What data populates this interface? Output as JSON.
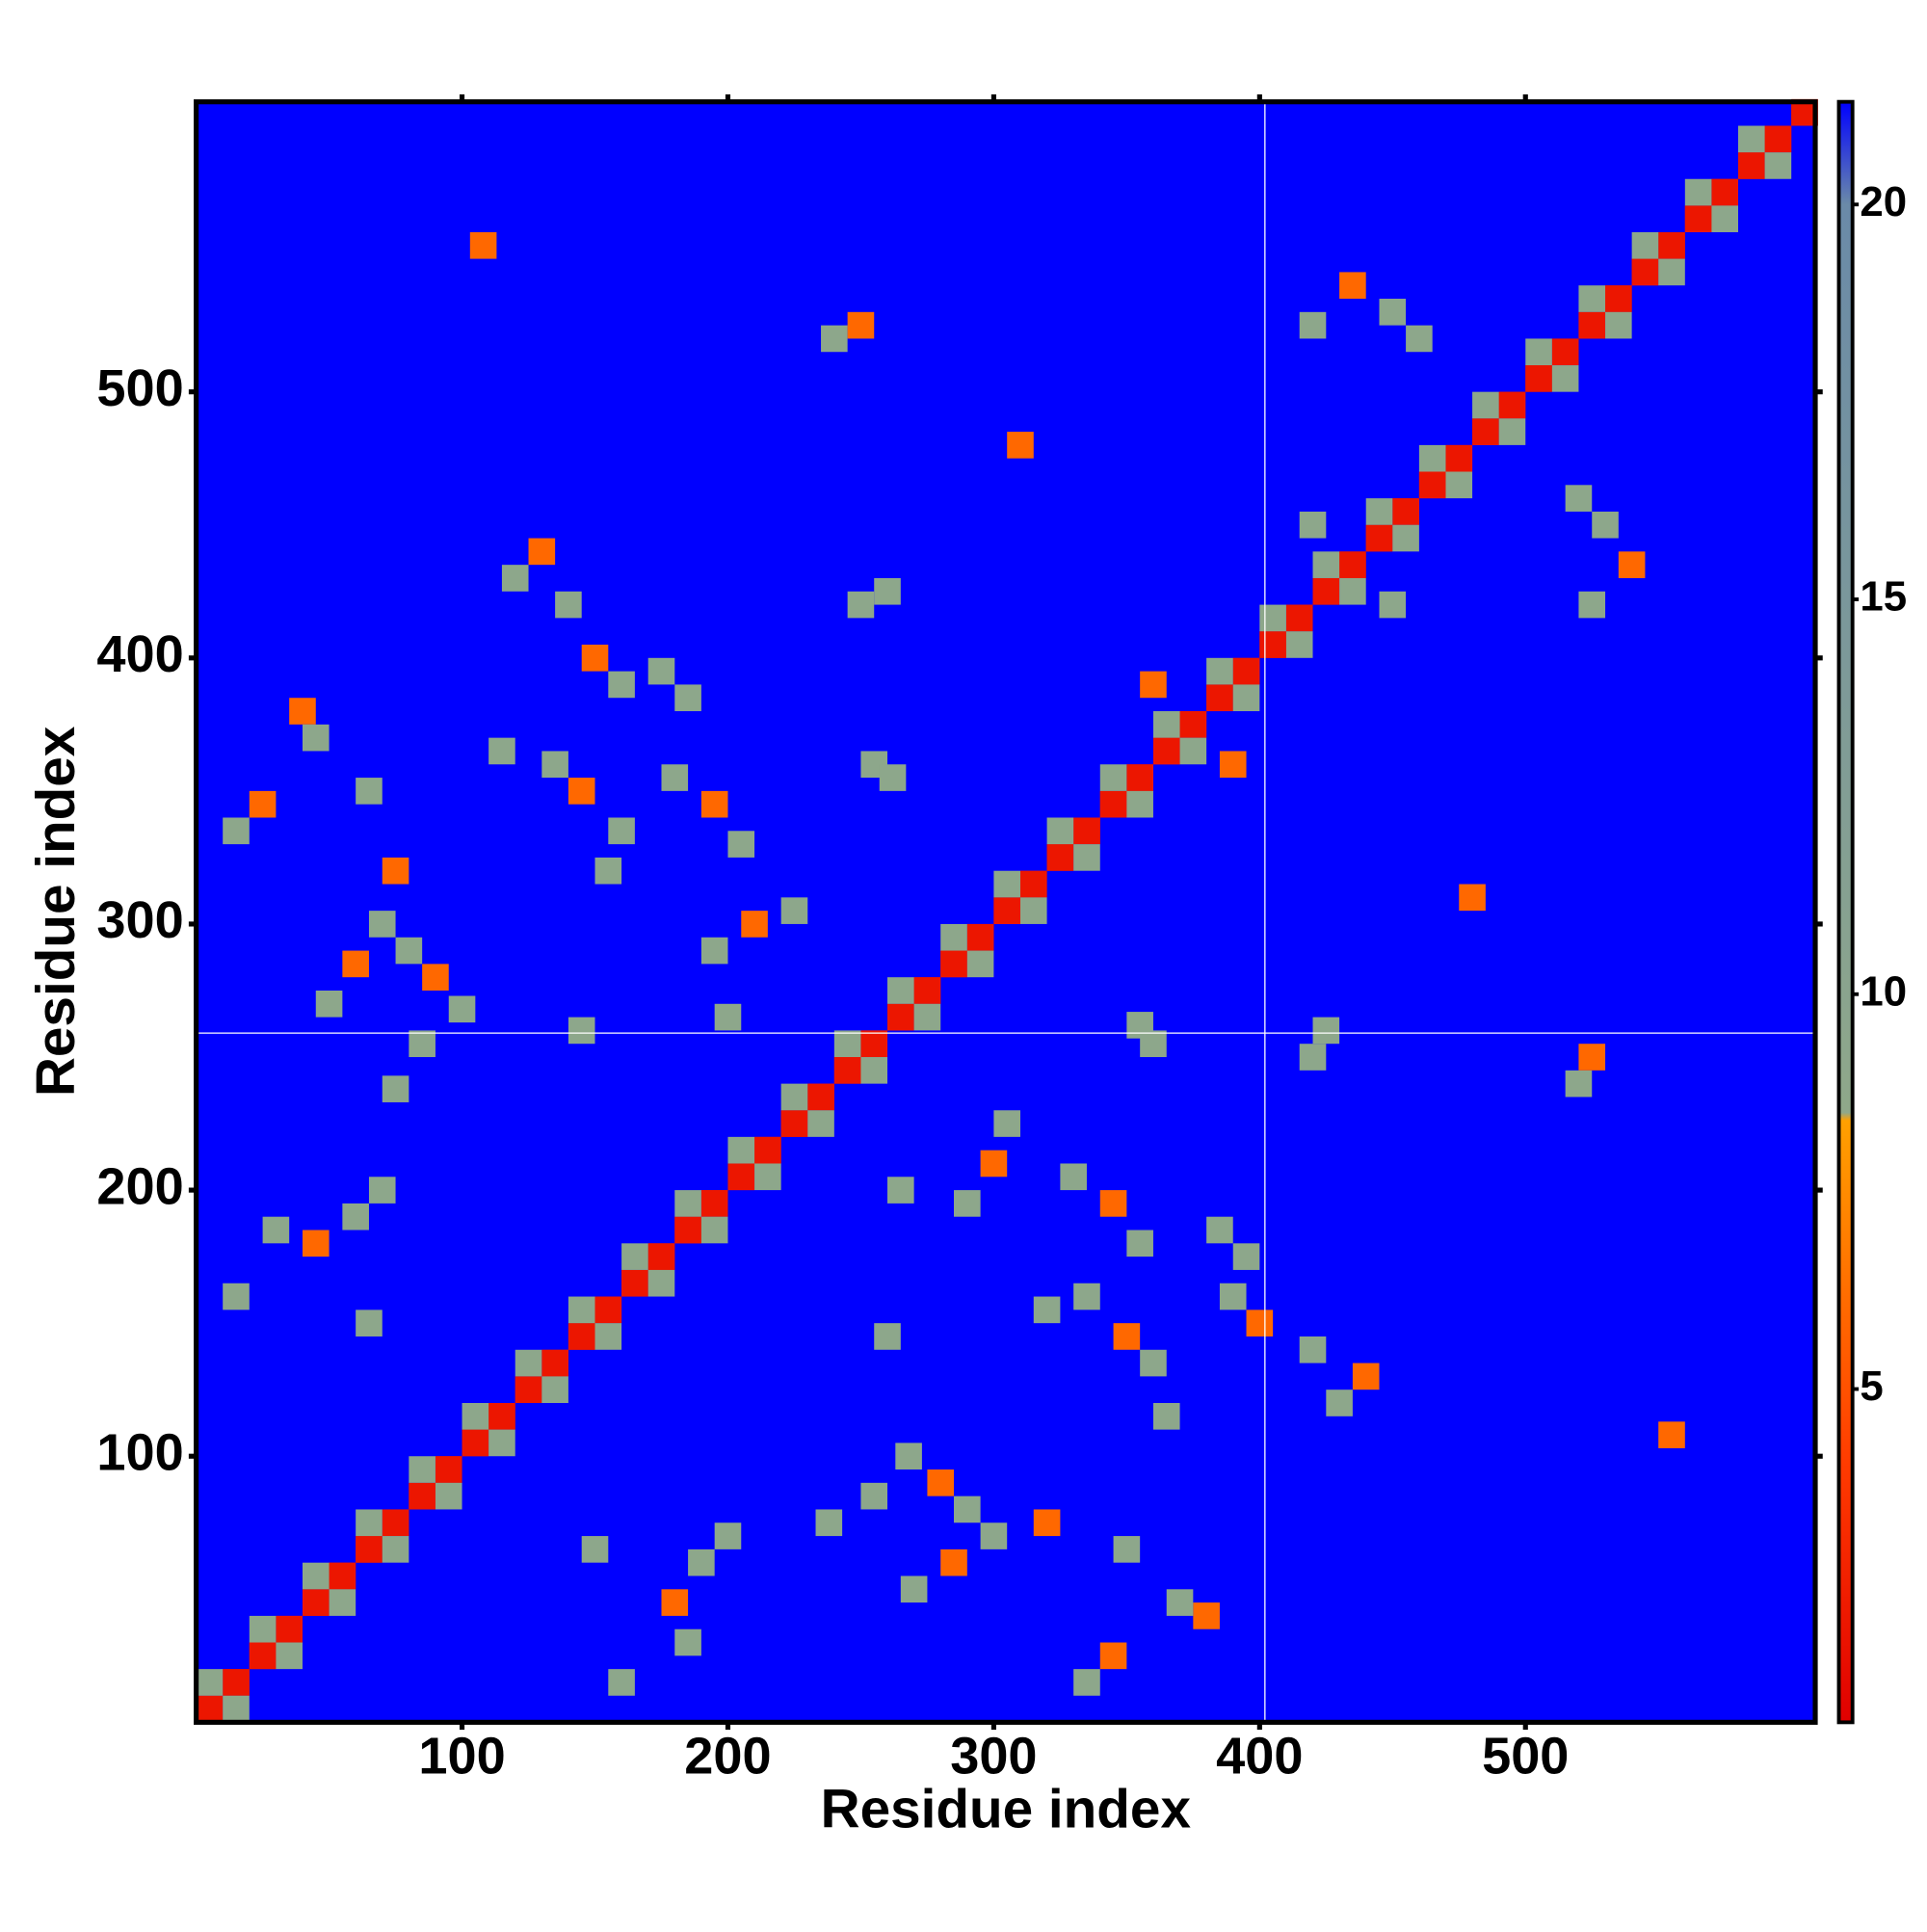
{
  "chart_data": {
    "type": "heatmap",
    "xlabel": "Residue index",
    "ylabel": "Residue index",
    "xlim": [
      0,
      609
    ],
    "ylim": [
      0,
      609
    ],
    "xticks": [
      100,
      200,
      300,
      400,
      500
    ],
    "yticks": [
      100,
      200,
      300,
      400,
      500
    ],
    "clim": [
      0.78,
      21.3
    ],
    "cticks": [
      5,
      10,
      15,
      20
    ],
    "colorscale": [
      {
        "value": 0.78,
        "color": "#e00000"
      },
      {
        "value": 4,
        "color": "#ff3a00"
      },
      {
        "value": 8.4,
        "color": "#ffa000"
      },
      {
        "value": 8.5,
        "color": "#8fa88a"
      },
      {
        "value": 20,
        "color": "#6a8aa8"
      },
      {
        "value": 21.3,
        "color": "#0000ff"
      }
    ],
    "background": "#0000ff",
    "symmetric": true,
    "reference_lines": {
      "x": 402,
      "y": 259,
      "color": "#ffffff"
    },
    "x": [
      5,
      15,
      25,
      35,
      45,
      55,
      65,
      75,
      85,
      95,
      105,
      115,
      125,
      135,
      145,
      155,
      165,
      175,
      185,
      195,
      205,
      215,
      225,
      235,
      245,
      255,
      265,
      275,
      285,
      295,
      305,
      315,
      325,
      335,
      345,
      355,
      365,
      375,
      385,
      395,
      405,
      415,
      425,
      435,
      445,
      455,
      465,
      475,
      485,
      495,
      505,
      515,
      525,
      535,
      545,
      555,
      565,
      575,
      585,
      595,
      605,
      5,
      25,
      45,
      65,
      85,
      105,
      125,
      145,
      165,
      185,
      205,
      225,
      245,
      265,
      285,
      305,
      325,
      345,
      365,
      385,
      405,
      425,
      445,
      465,
      485,
      505,
      525,
      545,
      565,
      585,
      15,
      25,
      40,
      45,
      65,
      75,
      50,
      60,
      70,
      80,
      90,
      100,
      85,
      75,
      120,
      130,
      140,
      150,
      160,
      175,
      185,
      115,
      135,
      145,
      160,
      155,
      180,
      195,
      205,
      195,
      210,
      225,
      30,
      45,
      60,
      70,
      15,
      65,
      240,
      250,
      310,
      255,
      250,
      420,
      435,
      450,
      460,
      360,
      420,
      108,
      145,
      200,
      355,
      425
    ],
    "y": [
      5,
      15,
      25,
      35,
      45,
      55,
      65,
      75,
      85,
      95,
      105,
      115,
      125,
      135,
      145,
      155,
      165,
      175,
      185,
      195,
      205,
      215,
      225,
      235,
      245,
      255,
      265,
      275,
      285,
      295,
      305,
      315,
      325,
      335,
      345,
      355,
      365,
      375,
      385,
      395,
      405,
      415,
      425,
      435,
      445,
      455,
      465,
      475,
      485,
      495,
      505,
      515,
      525,
      535,
      545,
      555,
      565,
      575,
      585,
      595,
      605,
      15,
      35,
      55,
      75,
      95,
      115,
      135,
      155,
      175,
      195,
      215,
      235,
      255,
      275,
      295,
      315,
      335,
      355,
      375,
      395,
      415,
      435,
      455,
      475,
      495,
      515,
      535,
      555,
      575,
      595,
      335,
      345,
      380,
      370,
      350,
      320,
      270,
      285,
      300,
      290,
      280,
      268,
      255,
      238,
      430,
      440,
      420,
      400,
      390,
      395,
      385,
      365,
      360,
      350,
      335,
      320,
      355,
      345,
      330,
      290,
      300,
      305,
      185,
      180,
      190,
      200,
      160,
      150,
      520,
      525,
      480,
      360,
      420,
      525,
      540,
      530,
      520,
      390,
      450,
      555,
      260,
      265,
      262,
      260
    ],
    "values": [
      2,
      2,
      2,
      2,
      2,
      2,
      2,
      2,
      2,
      2,
      2,
      2,
      2,
      2,
      2,
      2,
      2,
      2,
      2,
      2,
      2,
      2,
      2,
      2,
      2,
      2,
      2,
      2,
      2,
      2,
      2,
      2,
      2,
      2,
      2,
      2,
      2,
      2,
      2,
      2,
      2,
      2,
      2,
      2,
      2,
      2,
      2,
      2,
      2,
      2,
      2,
      2,
      2,
      2,
      2,
      2,
      2,
      2,
      2,
      2,
      2,
      9,
      9,
      9,
      9,
      9,
      9,
      9,
      9,
      9,
      9,
      9,
      9,
      9,
      9,
      9,
      9,
      9,
      9,
      9,
      9,
      9,
      9,
      9,
      9,
      9,
      9,
      9,
      9,
      9,
      9,
      9,
      6,
      6,
      9,
      9,
      6,
      9,
      6,
      9,
      9,
      6,
      9,
      9,
      9,
      9,
      6,
      9,
      6,
      9,
      9,
      9,
      9,
      9,
      6,
      9,
      9,
      9,
      6,
      9,
      9,
      6,
      9,
      9,
      6,
      9,
      9,
      9,
      9,
      9,
      6,
      6,
      9,
      9,
      9,
      6,
      9,
      9,
      6,
      9,
      6,
      9,
      9,
      9,
      9
    ]
  }
}
